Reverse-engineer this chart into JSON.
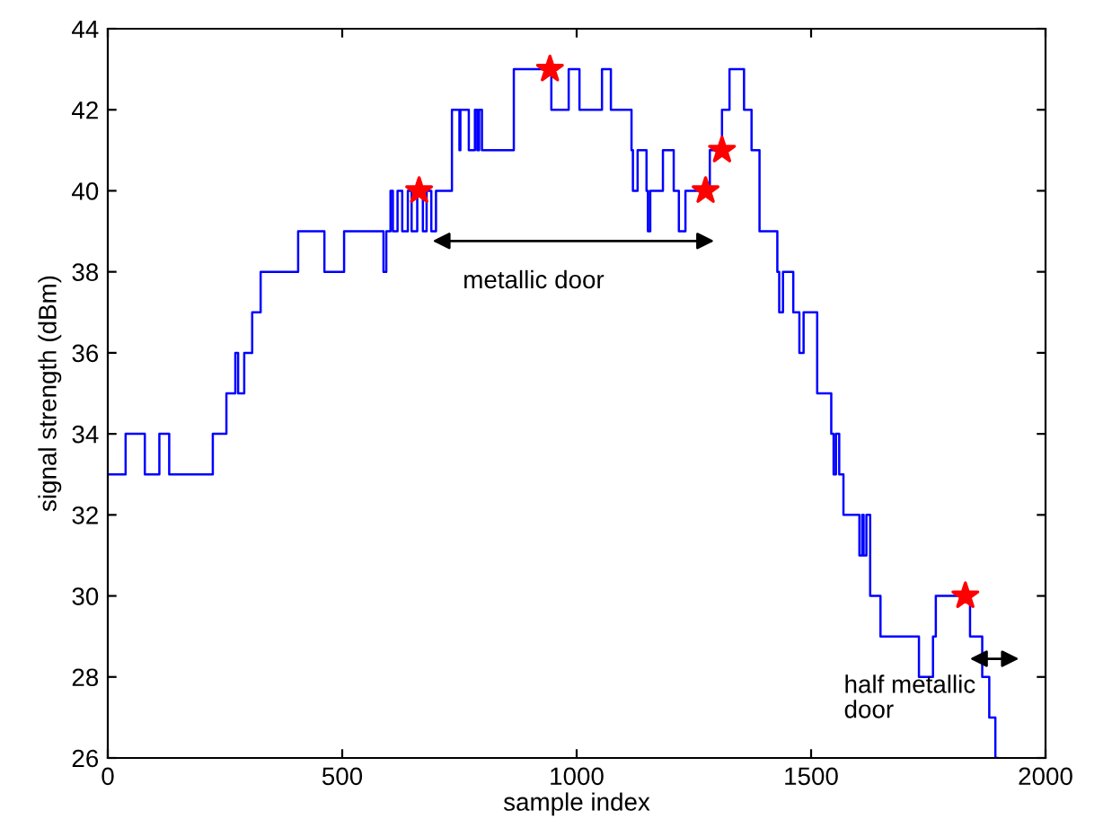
{
  "chart_data": {
    "type": "step",
    "xlabel": "sample index",
    "ylabel": "signal strength (dBm)",
    "xlim": [
      0,
      2000
    ],
    "ylim": [
      26,
      44
    ],
    "xticks": [
      0,
      500,
      1000,
      1500,
      2000
    ],
    "yticks": [
      26,
      28,
      30,
      32,
      34,
      36,
      38,
      40,
      42,
      44
    ],
    "grid": false,
    "legend": false,
    "series": [
      {
        "color": "#0000ff",
        "marker": "none",
        "x": [
          0,
          38,
          79,
          110,
          131,
          224,
          253,
          272,
          278,
          291,
          308,
          326,
          406,
          462,
          504,
          588,
          594,
          601,
          603,
          608,
          618,
          628,
          640,
          648,
          660,
          672,
          680,
          690,
          700,
          734,
          750,
          752,
          770,
          783,
          788,
          792,
          798,
          866,
          946,
          983,
          1006,
          1054,
          1073,
          1117,
          1120,
          1130,
          1149,
          1152,
          1157,
          1184,
          1207,
          1218,
          1232,
          1284,
          1310,
          1326,
          1357,
          1373,
          1390,
          1428,
          1432,
          1440,
          1462,
          1475,
          1484,
          1513,
          1543,
          1548,
          1553,
          1560,
          1569,
          1603,
          1609,
          1612,
          1618,
          1626,
          1648,
          1730,
          1760,
          1766,
          1839,
          1865,
          1880,
          1893,
          1897
        ],
        "values": [
          33,
          34,
          33,
          34,
          33,
          34,
          35,
          36,
          35,
          36,
          37,
          38,
          39,
          38,
          39,
          38,
          39,
          39,
          40,
          39,
          40,
          39,
          40,
          39,
          40,
          39,
          40,
          39,
          40,
          42,
          41,
          42,
          41,
          42,
          41,
          42,
          41,
          43,
          42,
          43,
          42,
          43,
          42,
          41,
          40,
          41,
          40,
          39,
          40,
          41,
          40,
          39,
          40,
          41,
          42,
          43,
          42,
          41,
          39,
          38,
          37,
          38,
          37,
          36,
          37,
          35,
          34,
          33,
          34,
          33,
          32,
          31,
          32,
          31,
          32,
          30,
          29,
          28,
          29,
          30,
          29,
          28,
          27,
          26,
          26
        ]
      },
      {
        "type": "scatter",
        "color": "#ff0000",
        "marker": "star",
        "x": [
          664,
          943,
          1275,
          1310,
          1829
        ],
        "values": [
          40,
          43,
          40,
          41,
          30
        ]
      }
    ],
    "annotations": [
      "metallic door",
      "half metallic\ndoor"
    ]
  }
}
